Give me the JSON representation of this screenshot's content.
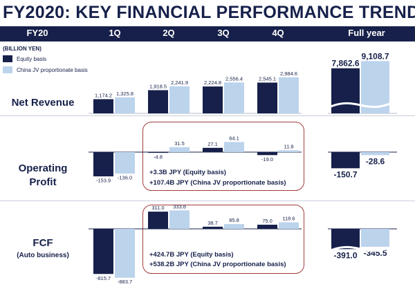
{
  "title": "FY2020: KEY FINANCIAL PERFORMANCE TREND",
  "header": [
    "FY20",
    "1Q",
    "2Q",
    "3Q",
    "4Q",
    "Full year"
  ],
  "units": "(BILLION YEN)",
  "legend": [
    {
      "label": "Equity basis",
      "color": "#16204a"
    },
    {
      "label": "China JV proportionate basis",
      "color": "#bcd3ec"
    }
  ],
  "rows": [
    {
      "label": "Net Revenue"
    },
    {
      "label": "Operating\nProfit"
    },
    {
      "label": "FCF",
      "sublabel": "(Auto business)"
    }
  ],
  "notes": [
    {
      "lines": [
        "+3.3B JPY (Equity basis)",
        "+107.4B JPY (China JV proportionate basis)"
      ]
    },
    {
      "lines": [
        "+424.7B JPY (Equity basis)",
        "+538.2B JPY (China JV proportionate basis)"
      ]
    }
  ],
  "chart_data": [
    {
      "type": "bar",
      "title": "Net Revenue",
      "categories": [
        "1Q",
        "2Q",
        "3Q",
        "4Q"
      ],
      "series": [
        {
          "name": "Equity basis",
          "values": [
            1174.2,
            1918.5,
            2224.8,
            2545.1
          ]
        },
        {
          "name": "China JV proportionate basis",
          "values": [
            1325.8,
            2241.9,
            2556.4,
            2984.6
          ]
        }
      ],
      "labels": [
        [
          "1,174.2",
          "1,918.5",
          "2,224.8",
          "2,545.1"
        ],
        [
          "1,325.8",
          "2,241.9",
          "2,556.4",
          "2,984.6"
        ]
      ]
    },
    {
      "type": "bar",
      "title": "Net Revenue",
      "categories": [
        "Full year"
      ],
      "series": [
        {
          "name": "Equity basis",
          "values": [
            7862.6
          ]
        },
        {
          "name": "China JV proportionate basis",
          "values": [
            9108.7
          ]
        }
      ],
      "labels": [
        [
          "7,862.6"
        ],
        [
          "9,108.7"
        ]
      ]
    },
    {
      "type": "bar",
      "title": "Operating Profit",
      "categories": [
        "1Q",
        "2Q",
        "3Q",
        "4Q"
      ],
      "series": [
        {
          "name": "Equity basis",
          "values": [
            -153.9,
            -4.8,
            27.1,
            -19.0
          ]
        },
        {
          "name": "China JV proportionate basis",
          "values": [
            -136.0,
            31.5,
            64.1,
            11.8
          ]
        }
      ],
      "labels": [
        [
          "-153.9",
          "-4.8",
          "27.1",
          "-19.0"
        ],
        [
          "-136.0",
          "31.5",
          "64.1",
          "11.8"
        ]
      ]
    },
    {
      "type": "bar",
      "title": "Operating Profit",
      "categories": [
        "Full year"
      ],
      "series": [
        {
          "name": "Equity basis",
          "values": [
            -150.7
          ]
        },
        {
          "name": "China JV proportionate basis",
          "values": [
            -28.6
          ]
        }
      ],
      "labels": [
        [
          "-150.7"
        ],
        [
          "-28.6"
        ]
      ]
    },
    {
      "type": "bar",
      "title": "FCF (Auto business)",
      "categories": [
        "1Q",
        "2Q",
        "3Q",
        "4Q"
      ],
      "series": [
        {
          "name": "Equity basis",
          "values": [
            -815.7,
            311.0,
            38.7,
            75.0
          ]
        },
        {
          "name": "China JV proportionate basis",
          "values": [
            -883.7,
            333.8,
            85.8,
            118.6
          ]
        }
      ],
      "labels": [
        [
          "-815.7",
          "311.0",
          "38.7",
          "75.0"
        ],
        [
          "-883.7",
          "333.8",
          "85.8",
          "118.6"
        ]
      ]
    },
    {
      "type": "bar",
      "title": "FCF (Auto business)",
      "categories": [
        "Full year"
      ],
      "series": [
        {
          "name": "Equity basis",
          "values": [
            -391.0
          ]
        },
        {
          "name": "China JV proportionate basis",
          "values": [
            -345.5
          ]
        }
      ],
      "labels": [
        [
          "-391.0"
        ],
        [
          "-345.5"
        ]
      ]
    }
  ]
}
